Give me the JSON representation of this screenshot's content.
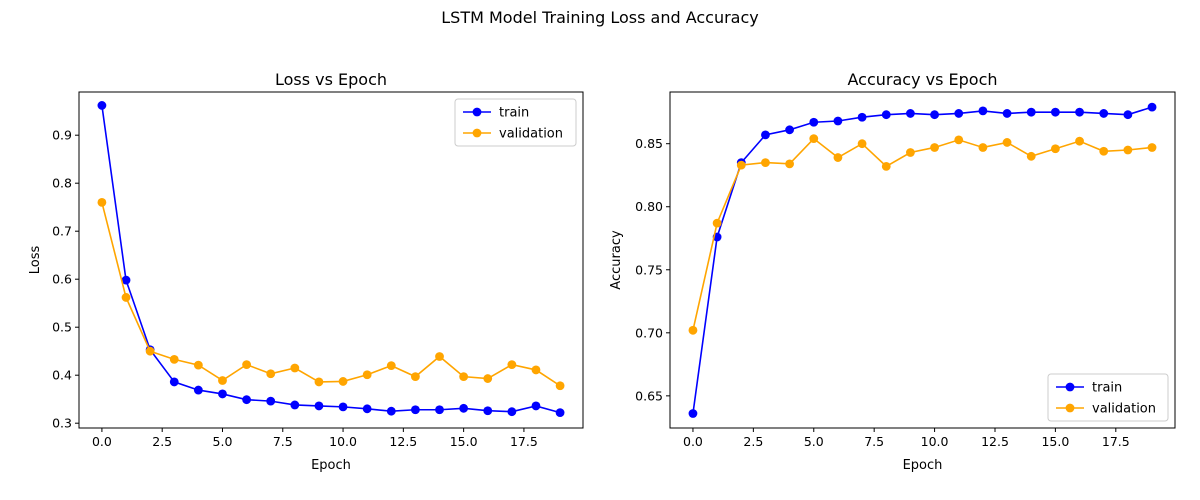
{
  "figure": {
    "title": "LSTM Model Training Loss and Accuracy"
  },
  "chart_data": [
    {
      "type": "line",
      "title": "Loss vs Epoch",
      "xlabel": "Epoch",
      "ylabel": "Loss",
      "xlim": [
        -0.95,
        19.95
      ],
      "ylim": [
        0.29,
        0.99
      ],
      "xticks": [
        0,
        2.5,
        5,
        7.5,
        10,
        12.5,
        15,
        17.5
      ],
      "xtick_labels": [
        "0.0",
        "2.5",
        "5.0",
        "7.5",
        "10.0",
        "12.5",
        "15.0",
        "17.5"
      ],
      "yticks": [
        0.3,
        0.4,
        0.5,
        0.6,
        0.7,
        0.8,
        0.9
      ],
      "ytick_labels": [
        "0.3",
        "0.4",
        "0.5",
        "0.6",
        "0.7",
        "0.8",
        "0.9"
      ],
      "grid": false,
      "legend": "top-right",
      "x": [
        0,
        1,
        2,
        3,
        4,
        5,
        6,
        7,
        8,
        9,
        10,
        11,
        12,
        13,
        14,
        15,
        16,
        17,
        18,
        19
      ],
      "series": [
        {
          "name": "train",
          "color": "#0000ff",
          "values": [
            0.962,
            0.598,
            0.453,
            0.386,
            0.369,
            0.361,
            0.349,
            0.346,
            0.338,
            0.336,
            0.334,
            0.33,
            0.325,
            0.328,
            0.328,
            0.331,
            0.326,
            0.324,
            0.336,
            0.322
          ]
        },
        {
          "name": "validation",
          "color": "#ffa500",
          "values": [
            0.76,
            0.562,
            0.45,
            0.433,
            0.421,
            0.389,
            0.422,
            0.403,
            0.415,
            0.386,
            0.387,
            0.401,
            0.42,
            0.397,
            0.439,
            0.397,
            0.393,
            0.422,
            0.411,
            0.378
          ]
        }
      ]
    },
    {
      "type": "line",
      "title": "Accuracy vs Epoch",
      "xlabel": "Epoch",
      "ylabel": "Accuracy",
      "xlim": [
        -0.95,
        19.95
      ],
      "ylim": [
        0.6245,
        0.891
      ],
      "xticks": [
        0,
        2.5,
        5,
        7.5,
        10,
        12.5,
        15,
        17.5
      ],
      "xtick_labels": [
        "0.0",
        "2.5",
        "5.0",
        "7.5",
        "10.0",
        "12.5",
        "15.0",
        "17.5"
      ],
      "yticks": [
        0.65,
        0.7,
        0.75,
        0.8,
        0.85
      ],
      "ytick_labels": [
        "0.65",
        "0.70",
        "0.75",
        "0.80",
        "0.85"
      ],
      "grid": false,
      "legend": "bottom-right",
      "x": [
        0,
        1,
        2,
        3,
        4,
        5,
        6,
        7,
        8,
        9,
        10,
        11,
        12,
        13,
        14,
        15,
        16,
        17,
        18,
        19
      ],
      "series": [
        {
          "name": "train",
          "color": "#0000ff",
          "values": [
            0.636,
            0.776,
            0.835,
            0.857,
            0.861,
            0.867,
            0.868,
            0.871,
            0.873,
            0.874,
            0.873,
            0.874,
            0.876,
            0.874,
            0.875,
            0.875,
            0.875,
            0.874,
            0.873,
            0.879
          ]
        },
        {
          "name": "validation",
          "color": "#ffa500",
          "values": [
            0.702,
            0.787,
            0.833,
            0.835,
            0.834,
            0.854,
            0.839,
            0.85,
            0.832,
            0.843,
            0.847,
            0.853,
            0.847,
            0.851,
            0.84,
            0.846,
            0.852,
            0.844,
            0.845,
            0.847
          ]
        }
      ]
    }
  ]
}
